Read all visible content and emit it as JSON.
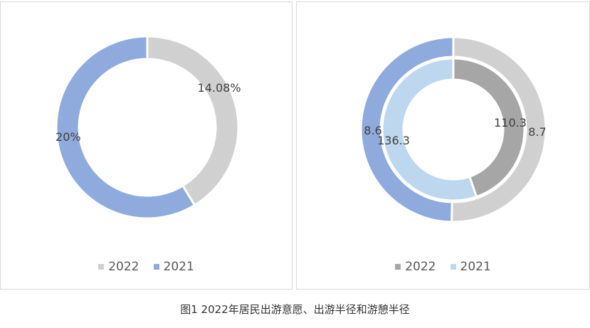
{
  "caption": "图1 2022年居民出游意愿、出游半径和游憩半径",
  "chart_data": [
    {
      "type": "pie",
      "variant": "doughnut",
      "series": [
        {
          "name": "2022",
          "value": 14.08,
          "label": "14.08%",
          "color": "#d0d0d0"
        },
        {
          "name": "2021",
          "value": 20,
          "label": "20%",
          "color": "#8faadc"
        }
      ],
      "legend": "bottom"
    },
    {
      "type": "pie",
      "variant": "nested-doughnut",
      "rings": [
        {
          "ring": "outer",
          "slices": [
            {
              "name": "2022",
              "value": 8.7,
              "label": "8.7",
              "color": "#d0d0d0"
            },
            {
              "name": "2021",
              "value": 8.6,
              "label": "8.6",
              "color": "#8faadc"
            }
          ]
        },
        {
          "ring": "inner",
          "slices": [
            {
              "name": "2022",
              "value": 110.3,
              "label": "110.3",
              "color": "#a6a6a6"
            },
            {
              "name": "2021",
              "value": 136.3,
              "label": "136.3",
              "color": "#bdd7ee"
            }
          ]
        }
      ],
      "legend_entries": [
        {
          "name": "2022",
          "color": "#a6a6a6"
        },
        {
          "name": "2021",
          "color": "#bdd7ee"
        }
      ],
      "legend": "bottom"
    }
  ]
}
